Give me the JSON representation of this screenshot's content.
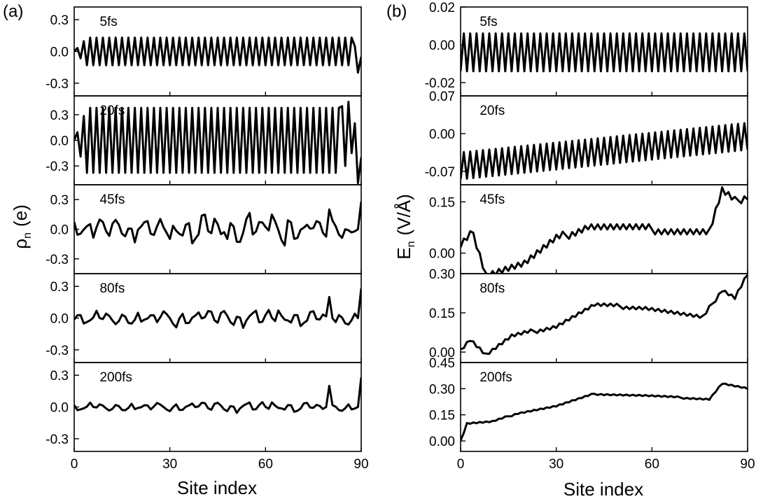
{
  "panels": [
    {
      "label": "(a)",
      "ylabel_main": "ρ",
      "ylabel_sub": "n",
      "ylabel_unit": "(e)"
    },
    {
      "label": "(b)",
      "ylabel_main": "E",
      "ylabel_sub": "n",
      "ylabel_unit": "(V/Å)"
    }
  ],
  "xlabel": "Site index",
  "chart_data": [
    {
      "type": "line",
      "panel": "(a)",
      "ylabel": "ρn (e)",
      "xlabel": "Site index",
      "xlim": [
        0,
        90
      ],
      "xticks": [
        0,
        30,
        60,
        90
      ],
      "subplots": [
        {
          "name": "5fs",
          "ylim": [
            -0.42,
            0.42
          ],
          "yticks": [
            -0.3,
            0.0,
            0.3
          ],
          "yticklabels": [
            "-0.3",
            "0.0",
            "0.3"
          ],
          "pattern": "alt",
          "params": {
            "amp": 0.13,
            "ramp_start": 4,
            "end": [
              [
                88,
                0.05
              ],
              [
                89,
                -0.2
              ],
              [
                90,
                -0.05
              ]
            ]
          }
        },
        {
          "name": "20fs",
          "ylim": [
            -0.52,
            0.52
          ],
          "yticks": [
            -0.3,
            0.0,
            0.3
          ],
          "yticklabels": [
            "-0.3",
            "0.0",
            "0.3"
          ],
          "pattern": "alt",
          "params": {
            "amp": 0.38,
            "ramp_start": 4,
            "end": [
              [
                84,
                0.4
              ],
              [
                85,
                -0.3
              ],
              [
                86,
                0.45
              ],
              [
                87,
                -0.15
              ],
              [
                88,
                0.2
              ],
              [
                89,
                -0.5
              ],
              [
                90,
                -0.2
              ]
            ]
          }
        },
        {
          "name": "45fs",
          "ylim": [
            -0.45,
            0.45
          ],
          "yticks": [
            -0.3,
            0.0,
            0.3
          ],
          "yticklabels": [
            "-0.3",
            "0.0",
            "0.3"
          ],
          "pattern": "noisy",
          "params": {
            "seed": 11,
            "amp": 0.18
          }
        },
        {
          "name": "80fs",
          "ylim": [
            -0.42,
            0.42
          ],
          "yticks": [
            -0.3,
            0.0,
            0.3
          ],
          "yticklabels": [
            "-0.3",
            "0.0",
            "0.3"
          ],
          "pattern": "noisy",
          "params": {
            "seed": 23,
            "amp": 0.1
          }
        },
        {
          "name": "200fs",
          "ylim": [
            -0.42,
            0.42
          ],
          "yticks": [
            -0.3,
            0.0,
            0.3
          ],
          "yticklabels": [
            "-0.3",
            "0.0",
            "0.3"
          ],
          "pattern": "noisy",
          "params": {
            "seed": 37,
            "amp": 0.06
          }
        }
      ]
    },
    {
      "type": "line",
      "panel": "(b)",
      "ylabel": "En (V/Å)",
      "xlabel": "Site index",
      "xlim": [
        0,
        90
      ],
      "xticks": [
        0,
        30,
        60,
        90
      ],
      "subplots": [
        {
          "name": "5fs",
          "ylim": [
            -0.027,
            0.02
          ],
          "yticks": [
            -0.02,
            0.0,
            0.02
          ],
          "yticklabels": [
            "-0.02",
            "0.00",
            "0.02"
          ],
          "pattern": "alt_field",
          "params": {
            "center": -0.004,
            "amp": 0.01
          }
        },
        {
          "name": "20fs",
          "ylim": [
            -0.095,
            0.07
          ],
          "yticks": [
            -0.07,
            0.0,
            0.07
          ],
          "yticklabels": [
            "-0.07",
            "0.00",
            "0.07"
          ],
          "pattern": "alt_field",
          "params": {
            "center_start": -0.06,
            "center_end": -0.005,
            "amp": 0.025
          }
        },
        {
          "name": "45fs",
          "ylim": [
            -0.06,
            0.2
          ],
          "yticks": [
            0.0,
            0.15
          ],
          "yticklabels": [
            "0.00",
            "0.15"
          ],
          "pattern": "drift",
          "params": {
            "seed": 5,
            "pts": [
              [
                0,
                0.02
              ],
              [
                4,
                0.06
              ],
              [
                8,
                -0.06
              ],
              [
                20,
                -0.03
              ],
              [
                30,
                0.04
              ],
              [
                40,
                0.08
              ],
              [
                78,
                0.06
              ],
              [
                82,
                0.18
              ],
              [
                86,
                0.15
              ],
              [
                90,
                0.17
              ]
            ],
            "amp": 0.015
          }
        },
        {
          "name": "80fs",
          "ylim": [
            -0.04,
            0.3
          ],
          "yticks": [
            0.0,
            0.15,
            0.3
          ],
          "yticklabels": [
            "0.00",
            "0.15",
            "0.30"
          ],
          "pattern": "drift",
          "params": {
            "seed": 9,
            "pts": [
              [
                0,
                0.01
              ],
              [
                3,
                0.05
              ],
              [
                8,
                -0.01
              ],
              [
                16,
                0.06
              ],
              [
                30,
                0.1
              ],
              [
                42,
                0.18
              ],
              [
                58,
                0.17
              ],
              [
                76,
                0.13
              ],
              [
                82,
                0.24
              ],
              [
                86,
                0.21
              ],
              [
                90,
                0.3
              ]
            ],
            "amp": 0.01
          }
        },
        {
          "name": "200fs",
          "ylim": [
            -0.06,
            0.45
          ],
          "yticks": [
            0.0,
            0.15,
            0.3,
            0.45
          ],
          "yticklabels": [
            "0.00",
            "0.15",
            "0.30",
            "0.45"
          ],
          "pattern": "drift",
          "params": {
            "seed": 13,
            "pts": [
              [
                0,
                0.0
              ],
              [
                2,
                0.1
              ],
              [
                10,
                0.11
              ],
              [
                18,
                0.16
              ],
              [
                30,
                0.2
              ],
              [
                42,
                0.27
              ],
              [
                58,
                0.26
              ],
              [
                78,
                0.24
              ],
              [
                82,
                0.33
              ],
              [
                90,
                0.3
              ]
            ],
            "amp": 0.006
          }
        }
      ]
    }
  ]
}
